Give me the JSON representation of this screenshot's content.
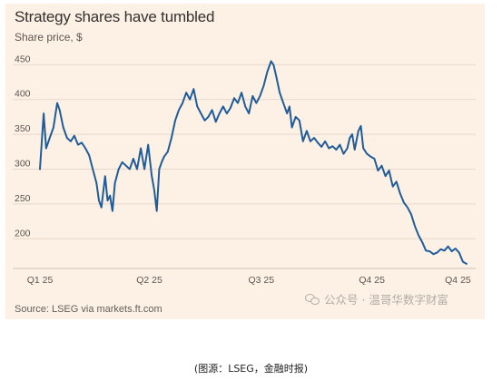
{
  "chart_data": {
    "type": "line",
    "title": "Strategy shares have tumbled",
    "subtitle": "Share price, $",
    "ylabel": "",
    "xlabel": "",
    "ylim": [
      160,
      470
    ],
    "yticks": [
      200,
      250,
      300,
      350,
      400,
      450
    ],
    "xticks": [
      {
        "label": "Q1 25",
        "x": 0
      },
      {
        "label": "Q2 25",
        "x": 89
      },
      {
        "label": "Q3 25",
        "x": 180
      },
      {
        "label": "Q4 25",
        "x": 270
      },
      {
        "label": "Q4 25",
        "x": 340
      }
    ],
    "grid": true,
    "legend": "none",
    "series": [
      {
        "color": "#1f5c99",
        "points": [
          [
            0,
            300
          ],
          [
            3,
            380
          ],
          [
            5,
            330
          ],
          [
            8,
            345
          ],
          [
            11,
            360
          ],
          [
            14,
            395
          ],
          [
            16,
            385
          ],
          [
            19,
            360
          ],
          [
            22,
            345
          ],
          [
            25,
            340
          ],
          [
            28,
            348
          ],
          [
            31,
            335
          ],
          [
            34,
            338
          ],
          [
            37,
            330
          ],
          [
            40,
            320
          ],
          [
            43,
            300
          ],
          [
            46,
            280
          ],
          [
            48,
            255
          ],
          [
            50,
            245
          ],
          [
            53,
            290
          ],
          [
            55,
            255
          ],
          [
            57,
            262
          ],
          [
            59,
            240
          ],
          [
            61,
            280
          ],
          [
            64,
            300
          ],
          [
            67,
            310
          ],
          [
            70,
            305
          ],
          [
            73,
            300
          ],
          [
            76,
            315
          ],
          [
            79,
            300
          ],
          [
            82,
            330
          ],
          [
            85,
            300
          ],
          [
            88,
            335
          ],
          [
            91,
            290
          ],
          [
            93,
            270
          ],
          [
            95,
            240
          ],
          [
            97,
            300
          ],
          [
            99,
            310
          ],
          [
            101,
            318
          ],
          [
            104,
            325
          ],
          [
            107,
            345
          ],
          [
            110,
            370
          ],
          [
            113,
            385
          ],
          [
            116,
            395
          ],
          [
            119,
            410
          ],
          [
            122,
            400
          ],
          [
            125,
            415
          ],
          [
            128,
            390
          ],
          [
            131,
            380
          ],
          [
            134,
            370
          ],
          [
            137,
            375
          ],
          [
            140,
            385
          ],
          [
            143,
            368
          ],
          [
            146,
            380
          ],
          [
            149,
            390
          ],
          [
            152,
            380
          ],
          [
            155,
            388
          ],
          [
            158,
            402
          ],
          [
            161,
            395
          ],
          [
            164,
            410
          ],
          [
            167,
            390
          ],
          [
            170,
            380
          ],
          [
            173,
            405
          ],
          [
            176,
            395
          ],
          [
            179,
            405
          ],
          [
            182,
            420
          ],
          [
            185,
            440
          ],
          [
            188,
            455
          ],
          [
            190,
            450
          ],
          [
            192,
            435
          ],
          [
            195,
            410
          ],
          [
            198,
            395
          ],
          [
            201,
            380
          ],
          [
            203,
            390
          ],
          [
            205,
            360
          ],
          [
            208,
            375
          ],
          [
            211,
            370
          ],
          [
            214,
            340
          ],
          [
            217,
            355
          ],
          [
            220,
            340
          ],
          [
            223,
            345
          ],
          [
            226,
            338
          ],
          [
            229,
            332
          ],
          [
            232,
            340
          ],
          [
            235,
            330
          ],
          [
            238,
            333
          ],
          [
            241,
            328
          ],
          [
            244,
            335
          ],
          [
            247,
            322
          ],
          [
            250,
            330
          ],
          [
            252,
            345
          ],
          [
            254,
            350
          ],
          [
            256,
            328
          ],
          [
            259,
            355
          ],
          [
            261,
            362
          ],
          [
            263,
            330
          ],
          [
            266,
            322
          ],
          [
            269,
            318
          ],
          [
            272,
            315
          ],
          [
            275,
            298
          ],
          [
            278,
            305
          ],
          [
            281,
            290
          ],
          [
            284,
            298
          ],
          [
            287,
            275
          ],
          [
            290,
            282
          ],
          [
            293,
            265
          ],
          [
            296,
            252
          ],
          [
            299,
            245
          ],
          [
            302,
            235
          ],
          [
            305,
            218
          ],
          [
            308,
            205
          ],
          [
            311,
            195
          ],
          [
            314,
            183
          ],
          [
            317,
            182
          ],
          [
            320,
            178
          ],
          [
            323,
            180
          ],
          [
            326,
            185
          ],
          [
            329,
            183
          ],
          [
            332,
            189
          ],
          [
            335,
            182
          ],
          [
            338,
            186
          ],
          [
            341,
            180
          ],
          [
            344,
            167
          ],
          [
            347,
            164
          ]
        ]
      }
    ]
  },
  "source": "Source: LSEG via markets.ft.com",
  "watermark": "公众号 · 温哥华数字财富",
  "caption": "(图源：LSEG，金融时报)"
}
